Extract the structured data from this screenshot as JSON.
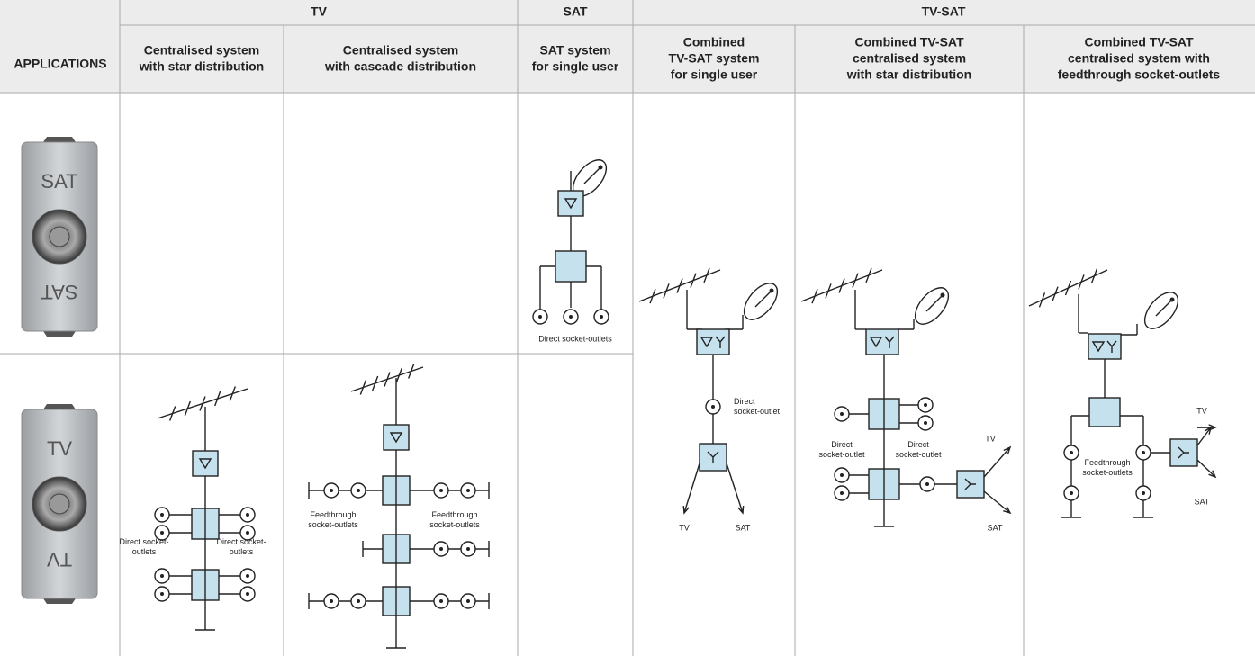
{
  "header": {
    "row_label": "APPLICATIONS",
    "groups": [
      "TV",
      "SAT",
      "TV-SAT"
    ],
    "columns": [
      [
        "Centralised system",
        "with star distribution"
      ],
      [
        "Centralised system",
        "with cascade distribution"
      ],
      [
        "SAT system",
        "for single user"
      ],
      [
        "Combined",
        "TV-SAT system",
        "for single user"
      ],
      [
        "Combined TV-SAT",
        "centralised system",
        "with star distribution"
      ],
      [
        "Combined TV-SAT",
        "centralised system with",
        "feedthrough socket-outlets"
      ]
    ]
  },
  "devices": [
    {
      "label": "SAT"
    },
    {
      "label": "TV"
    }
  ],
  "diagrams": {
    "sat_single": [
      "Direct socket-outlets"
    ],
    "tv_star": [
      [
        "Direct socket-",
        "outlets"
      ],
      [
        "Direct socket-",
        "outlets"
      ]
    ],
    "tv_cascade": [
      [
        "Feedthrough",
        "socket-outlets"
      ],
      [
        "Feedthrough",
        "socket-outlets"
      ]
    ],
    "tvsat_single": [
      [
        "Direct",
        "socket-outlet"
      ],
      "TV",
      "SAT"
    ],
    "tvsat_star": [
      [
        "Direct",
        "socket-outlet"
      ],
      [
        "Direct",
        "socket-outlet"
      ],
      "TV",
      "SAT"
    ],
    "tvsat_feed": [
      "TV",
      [
        "Feedthrough",
        "socket-outlets"
      ],
      "SAT"
    ]
  }
}
